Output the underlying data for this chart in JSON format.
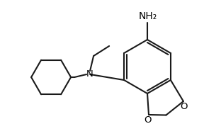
{
  "bg_color": "#ffffff",
  "bond_color": "#1a1a1a",
  "text_color": "#000000",
  "nh2_label": "NH₂",
  "n_label": "N",
  "o_label1": "O",
  "o_label2": "O",
  "font_size": 9.5,
  "line_width": 1.5
}
